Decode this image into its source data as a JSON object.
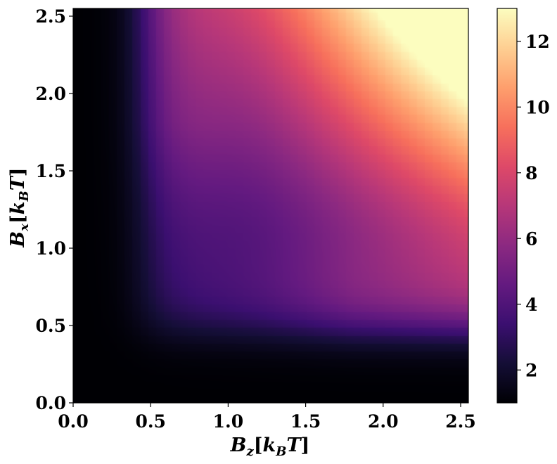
{
  "chart_data": {
    "type": "heatmap",
    "title": "",
    "x": {
      "symbol": "B",
      "subscript": "z",
      "bracket_open": "[",
      "unit_symbol": "k",
      "unit_subscript": "B",
      "unit_rest": "T",
      "bracket_close": "]",
      "range": [
        0.0,
        2.55
      ],
      "ticks": [
        0.0,
        0.5,
        1.0,
        1.5,
        2.0,
        2.5
      ],
      "tick_labels": [
        "0.0",
        "0.5",
        "1.0",
        "1.5",
        "2.0",
        "2.5"
      ]
    },
    "y": {
      "symbol": "B",
      "subscript": "x",
      "bracket_open": "[",
      "unit_symbol": "k",
      "unit_subscript": "B",
      "unit_rest": "T",
      "bracket_close": "]",
      "range": [
        0.0,
        2.55
      ],
      "ticks": [
        0.0,
        0.5,
        1.0,
        1.5,
        2.0,
        2.5
      ],
      "tick_labels": [
        "0.0",
        "0.5",
        "1.0",
        "1.5",
        "2.0",
        "2.5"
      ]
    },
    "colorbar": {
      "colormap": "magma",
      "range": [
        1.0,
        13.0
      ],
      "ticks": [
        2,
        4,
        6,
        8,
        10,
        12
      ],
      "tick_labels": [
        "2",
        "4",
        "6",
        "8",
        "10",
        "12"
      ]
    },
    "grid_resolution": 51,
    "approximate_values": {
      "note_points": [
        {
          "Bz": 0.0,
          "Bx": 0.0,
          "value": 1.0
        },
        {
          "Bz": 0.5,
          "Bx": 0.5,
          "value": 2.5
        },
        {
          "Bz": 1.0,
          "Bx": 1.0,
          "value": 3.5
        },
        {
          "Bz": 1.5,
          "Bx": 1.5,
          "value": 6.5
        },
        {
          "Bz": 2.0,
          "Bx": 2.0,
          "value": 10.5
        },
        {
          "Bz": 2.5,
          "Bx": 2.5,
          "value": 13.0
        },
        {
          "Bz": 2.5,
          "Bx": 0.0,
          "value": 1.0
        },
        {
          "Bz": 0.0,
          "Bx": 2.5,
          "value": 1.0
        },
        {
          "Bz": 2.5,
          "Bx": 1.0,
          "value": 4.0
        },
        {
          "Bz": 1.0,
          "Bx": 2.5,
          "value": 4.0
        }
      ]
    },
    "grid": false,
    "legend": "none"
  }
}
